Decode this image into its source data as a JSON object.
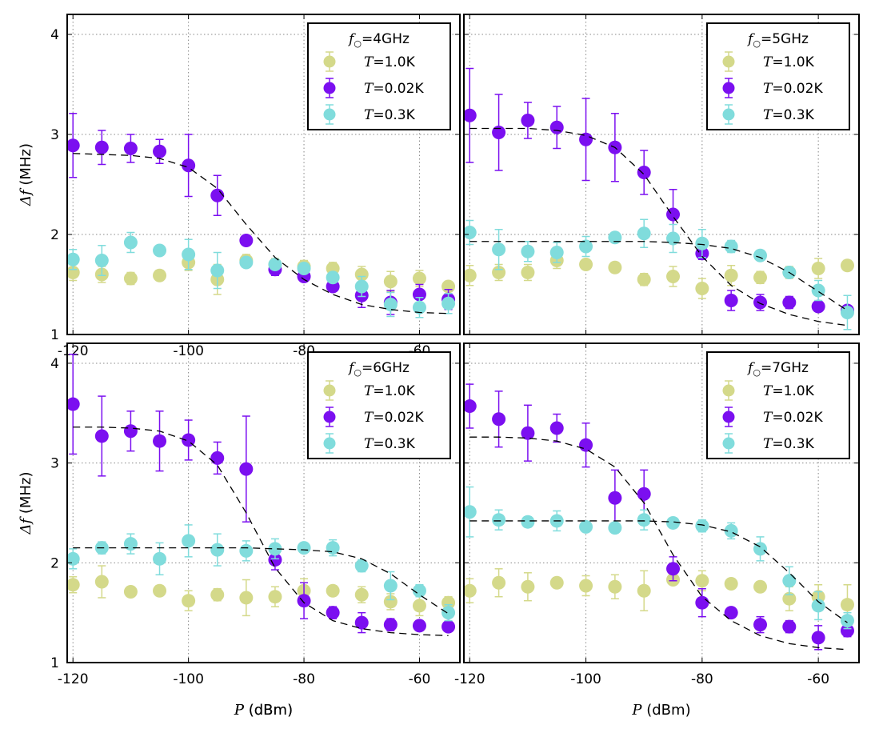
{
  "chart_data": [
    {
      "type": "scatter",
      "title": "",
      "xlabel_var": "P",
      "xlabel_unit": " (dBm)",
      "ylabel_var": "Δf",
      "ylabel_unit": " (MHz)",
      "xlim": [
        -121,
        -53
      ],
      "ylim": [
        1,
        4.2
      ],
      "xticks": [
        -120,
        -100,
        -80,
        -60
      ],
      "yticks": [
        1,
        2,
        3,
        4
      ],
      "grid": true,
      "legend_position": "top-right",
      "legend_title_var": "f",
      "legend_title_sub": "○",
      "legend_title_rest": "=4GHz",
      "series": [
        {
          "name_var": "T",
          "name_rest": "=1.0K",
          "color": "#d4d98a",
          "x": [
            -120,
            -115,
            -110,
            -105,
            -100,
            -95,
            -90,
            -85,
            -80,
            -75,
            -70,
            -65,
            -60,
            -55
          ],
          "y": [
            1.62,
            1.6,
            1.56,
            1.59,
            1.72,
            1.55,
            1.74,
            1.7,
            1.68,
            1.66,
            1.6,
            1.53,
            1.56,
            1.48
          ],
          "err": [
            0.08,
            0.08,
            0.06,
            0.05,
            0.08,
            0.15,
            0.06,
            0.06,
            0.06,
            0.06,
            0.08,
            0.1,
            0.08,
            0.05
          ]
        },
        {
          "name_var": "T",
          "name_rest": "=0.02K",
          "color": "#7b0ff0",
          "x": [
            -120,
            -115,
            -110,
            -105,
            -100,
            -95,
            -90,
            -85,
            -80,
            -75,
            -70,
            -65,
            -60,
            -55
          ],
          "y": [
            2.89,
            2.87,
            2.86,
            2.83,
            2.69,
            2.39,
            1.94,
            1.65,
            1.58,
            1.48,
            1.39,
            1.32,
            1.4,
            1.35
          ],
          "err": [
            0.32,
            0.17,
            0.14,
            0.12,
            0.31,
            0.2,
            0.04,
            0.06,
            0.05,
            0.05,
            0.12,
            0.12,
            0.1,
            0.1
          ]
        },
        {
          "name_var": "T",
          "name_rest": "=0.3K",
          "color": "#80dcdc",
          "x": [
            -120,
            -115,
            -110,
            -105,
            -100,
            -95,
            -90,
            -85,
            -80,
            -75,
            -70,
            -65,
            -60,
            -55
          ],
          "y": [
            1.75,
            1.74,
            1.92,
            1.84,
            1.8,
            1.64,
            1.72,
            1.7,
            1.66,
            1.57,
            1.48,
            1.3,
            1.27,
            1.31
          ],
          "err": [
            0.1,
            0.15,
            0.1,
            0.05,
            0.15,
            0.18,
            0.05,
            0.04,
            0.04,
            0.04,
            0.1,
            0.12,
            0.1,
            0.1
          ]
        }
      ],
      "fit": {
        "x": [
          -120,
          -115,
          -110,
          -105,
          -100,
          -95,
          -90,
          -85,
          -80,
          -75,
          -70,
          -65,
          -60,
          -55
        ],
        "y": [
          2.81,
          2.8,
          2.79,
          2.76,
          2.67,
          2.46,
          2.1,
          1.77,
          1.55,
          1.4,
          1.3,
          1.25,
          1.22,
          1.21
        ]
      }
    },
    {
      "type": "scatter",
      "title": "",
      "xlabel_var": "",
      "xlabel_unit": "",
      "ylabel_var": "",
      "ylabel_unit": "",
      "xlim": [
        -121,
        -53
      ],
      "ylim": [
        1,
        4.2
      ],
      "xticks": [],
      "yticks": [],
      "grid": true,
      "legend_position": "top-right",
      "legend_title_var": "f",
      "legend_title_sub": "○",
      "legend_title_rest": "=5GHz",
      "series": [
        {
          "name_var": "T",
          "name_rest": "=1.0K",
          "color": "#d4d98a",
          "x": [
            -120,
            -115,
            -110,
            -105,
            -100,
            -95,
            -90,
            -85,
            -80,
            -75,
            -70,
            -65,
            -60,
            -55
          ],
          "y": [
            1.59,
            1.62,
            1.62,
            1.74,
            1.7,
            1.67,
            1.55,
            1.58,
            1.46,
            1.59,
            1.57,
            1.62,
            1.66,
            1.69
          ],
          "err": [
            0.1,
            0.08,
            0.08,
            0.08,
            0.05,
            0.05,
            0.06,
            0.1,
            0.1,
            0.1,
            0.06,
            0.06,
            0.1,
            0.05
          ]
        },
        {
          "name_var": "T",
          "name_rest": "=0.02K",
          "color": "#7b0ff0",
          "x": [
            -120,
            -115,
            -110,
            -105,
            -100,
            -95,
            -90,
            -85,
            -80,
            -75,
            -70,
            -65,
            -60,
            -55
          ],
          "y": [
            3.19,
            3.02,
            3.14,
            3.07,
            2.95,
            2.87,
            2.62,
            2.2,
            1.81,
            1.34,
            1.32,
            1.32,
            1.28,
            1.24
          ],
          "err": [
            0.47,
            0.38,
            0.18,
            0.21,
            0.41,
            0.34,
            0.22,
            0.25,
            0.06,
            0.1,
            0.08,
            0.06,
            0.05,
            0.05
          ]
        },
        {
          "name_var": "T",
          "name_rest": "=0.3K",
          "color": "#80dcdc",
          "x": [
            -120,
            -115,
            -110,
            -105,
            -100,
            -95,
            -90,
            -85,
            -80,
            -75,
            -70,
            -65,
            -60,
            -55
          ],
          "y": [
            2.02,
            1.85,
            1.83,
            1.82,
            1.88,
            1.97,
            2.01,
            1.96,
            1.91,
            1.88,
            1.79,
            1.62,
            1.44,
            1.22
          ],
          "err": [
            0.12,
            0.2,
            0.1,
            0.1,
            0.1,
            0.05,
            0.14,
            0.14,
            0.14,
            0.06,
            0.04,
            0.05,
            0.1,
            0.17
          ]
        }
      ],
      "fit": {
        "x": [
          -120,
          -115,
          -110,
          -105,
          -100,
          -95,
          -90,
          -85,
          -80,
          -75,
          -70,
          -65,
          -60,
          -55
        ],
        "y": [
          3.06,
          3.06,
          3.06,
          3.04,
          2.99,
          2.87,
          2.6,
          2.18,
          1.78,
          1.49,
          1.31,
          1.2,
          1.13,
          1.09
        ]
      },
      "fit2": {
        "x": [
          -120,
          -115,
          -110,
          -105,
          -100,
          -95,
          -90,
          -85,
          -80,
          -75,
          -70,
          -65,
          -60,
          -55
        ],
        "y": [
          1.93,
          1.93,
          1.93,
          1.93,
          1.93,
          1.93,
          1.93,
          1.92,
          1.9,
          1.86,
          1.77,
          1.62,
          1.43,
          1.24
        ]
      }
    },
    {
      "type": "scatter",
      "title": "",
      "xlabel_var": "P",
      "xlabel_unit": " (dBm)",
      "ylabel_var": "Δf",
      "ylabel_unit": " (MHz)",
      "xlim": [
        -121,
        -53
      ],
      "ylim": [
        1,
        4.2
      ],
      "xticks": [
        -120,
        -100,
        -80,
        -60
      ],
      "yticks": [
        1,
        2,
        3,
        4
      ],
      "grid": true,
      "legend_position": "top-right",
      "legend_title_var": "f",
      "legend_title_sub": "○",
      "legend_title_rest": "=6GHz",
      "series": [
        {
          "name_var": "T",
          "name_rest": "=1.0K",
          "color": "#d4d98a",
          "x": [
            -120,
            -115,
            -110,
            -105,
            -100,
            -95,
            -90,
            -85,
            -80,
            -75,
            -70,
            -65,
            -60,
            -55
          ],
          "y": [
            1.78,
            1.81,
            1.71,
            1.72,
            1.62,
            1.68,
            1.65,
            1.66,
            1.72,
            1.72,
            1.68,
            1.61,
            1.57,
            1.6
          ],
          "err": [
            0.08,
            0.16,
            0.05,
            0.05,
            0.1,
            0.06,
            0.18,
            0.1,
            0.12,
            0.05,
            0.08,
            0.08,
            0.1,
            0.06
          ]
        },
        {
          "name_var": "T",
          "name_rest": "=0.02K",
          "color": "#7b0ff0",
          "x": [
            -120,
            -115,
            -110,
            -105,
            -100,
            -95,
            -90,
            -85,
            -80,
            -75,
            -70,
            -65,
            -60,
            -55
          ],
          "y": [
            3.59,
            3.27,
            3.32,
            3.22,
            3.23,
            3.05,
            2.94,
            2.03,
            1.62,
            1.5,
            1.4,
            1.38,
            1.37,
            1.36
          ],
          "err": [
            0.5,
            0.4,
            0.2,
            0.3,
            0.2,
            0.16,
            0.53,
            0.1,
            0.18,
            0.06,
            0.1,
            0.06,
            0.05,
            0.05
          ]
        },
        {
          "name_var": "T",
          "name_rest": "=0.3K",
          "color": "#80dcdc",
          "x": [
            -120,
            -115,
            -110,
            -105,
            -100,
            -95,
            -90,
            -85,
            -80,
            -75,
            -70,
            -65,
            -60,
            -55
          ],
          "y": [
            2.04,
            2.15,
            2.19,
            2.04,
            2.22,
            2.13,
            2.12,
            2.14,
            2.15,
            2.15,
            1.97,
            1.77,
            1.72,
            1.5
          ],
          "err": [
            0.1,
            0.06,
            0.1,
            0.16,
            0.16,
            0.16,
            0.1,
            0.1,
            0.04,
            0.08,
            0.06,
            0.14,
            0.06,
            0.08
          ]
        }
      ],
      "fit": {
        "x": [
          -120,
          -115,
          -110,
          -105,
          -100,
          -95,
          -90,
          -85,
          -80,
          -75,
          -70,
          -65,
          -60,
          -55
        ],
        "y": [
          3.36,
          3.36,
          3.35,
          3.32,
          3.22,
          2.98,
          2.5,
          1.95,
          1.6,
          1.42,
          1.34,
          1.3,
          1.28,
          1.27
        ]
      },
      "fit2": {
        "x": [
          -120,
          -115,
          -110,
          -105,
          -100,
          -95,
          -90,
          -85,
          -80,
          -75,
          -70,
          -65,
          -60,
          -55
        ],
        "y": [
          2.15,
          2.15,
          2.15,
          2.15,
          2.15,
          2.15,
          2.15,
          2.14,
          2.13,
          2.11,
          2.04,
          1.89,
          1.68,
          1.49
        ]
      }
    },
    {
      "type": "scatter",
      "title": "",
      "xlabel_var": "P",
      "xlabel_unit": " (dBm)",
      "ylabel_var": "",
      "ylabel_unit": "",
      "xlim": [
        -121,
        -53
      ],
      "ylim": [
        1,
        4.2
      ],
      "xticks": [
        -120,
        -100,
        -80,
        -60
      ],
      "yticks": [],
      "grid": true,
      "legend_position": "top-right",
      "legend_title_var": "f",
      "legend_title_sub": "○",
      "legend_title_rest": "=7GHz",
      "series": [
        {
          "name_var": "T",
          "name_rest": "=1.0K",
          "color": "#d4d98a",
          "x": [
            -120,
            -115,
            -110,
            -105,
            -100,
            -95,
            -90,
            -85,
            -80,
            -75,
            -70,
            -65,
            -60,
            -55
          ],
          "y": [
            1.72,
            1.8,
            1.76,
            1.8,
            1.77,
            1.76,
            1.72,
            1.83,
            1.82,
            1.79,
            1.76,
            1.64,
            1.66,
            1.58
          ],
          "err": [
            0.12,
            0.14,
            0.14,
            0.05,
            0.1,
            0.12,
            0.2,
            0.04,
            0.1,
            0.05,
            0.05,
            0.12,
            0.12,
            0.2
          ]
        },
        {
          "name_var": "T",
          "name_rest": "=0.02K",
          "color": "#7b0ff0",
          "x": [
            -120,
            -115,
            -110,
            -105,
            -100,
            -95,
            -90,
            -85,
            -80,
            -75,
            -70,
            -65,
            -60,
            -55
          ],
          "y": [
            3.57,
            3.44,
            3.3,
            3.35,
            3.18,
            2.65,
            2.69,
            1.94,
            1.6,
            1.5,
            1.38,
            1.36,
            1.25,
            1.32
          ],
          "err": [
            0.22,
            0.28,
            0.28,
            0.14,
            0.22,
            0.28,
            0.24,
            0.12,
            0.14,
            0.05,
            0.08,
            0.06,
            0.12,
            0.06
          ]
        },
        {
          "name_var": "T",
          "name_rest": "=0.3K",
          "color": "#80dcdc",
          "x": [
            -120,
            -115,
            -110,
            -105,
            -100,
            -95,
            -90,
            -85,
            -80,
            -75,
            -70,
            -65,
            -60,
            -55
          ],
          "y": [
            2.51,
            2.43,
            2.41,
            2.42,
            2.36,
            2.35,
            2.43,
            2.4,
            2.37,
            2.32,
            2.14,
            1.82,
            1.57,
            1.42
          ],
          "err": [
            0.25,
            0.1,
            0.05,
            0.1,
            0.05,
            0.05,
            0.1,
            0.05,
            0.06,
            0.08,
            0.12,
            0.14,
            0.14,
            0.08
          ]
        }
      ],
      "fit": {
        "x": [
          -120,
          -115,
          -110,
          -105,
          -100,
          -95,
          -90,
          -85,
          -80,
          -75,
          -70,
          -65,
          -60,
          -55
        ],
        "y": [
          3.26,
          3.26,
          3.25,
          3.22,
          3.14,
          2.96,
          2.6,
          2.08,
          1.66,
          1.42,
          1.27,
          1.19,
          1.15,
          1.13
        ]
      },
      "fit2": {
        "x": [
          -120,
          -115,
          -110,
          -105,
          -100,
          -95,
          -90,
          -85,
          -80,
          -75,
          -70,
          -65,
          -60,
          -55
        ],
        "y": [
          2.42,
          2.42,
          2.42,
          2.42,
          2.42,
          2.42,
          2.42,
          2.41,
          2.38,
          2.31,
          2.16,
          1.9,
          1.61,
          1.4
        ]
      }
    }
  ]
}
